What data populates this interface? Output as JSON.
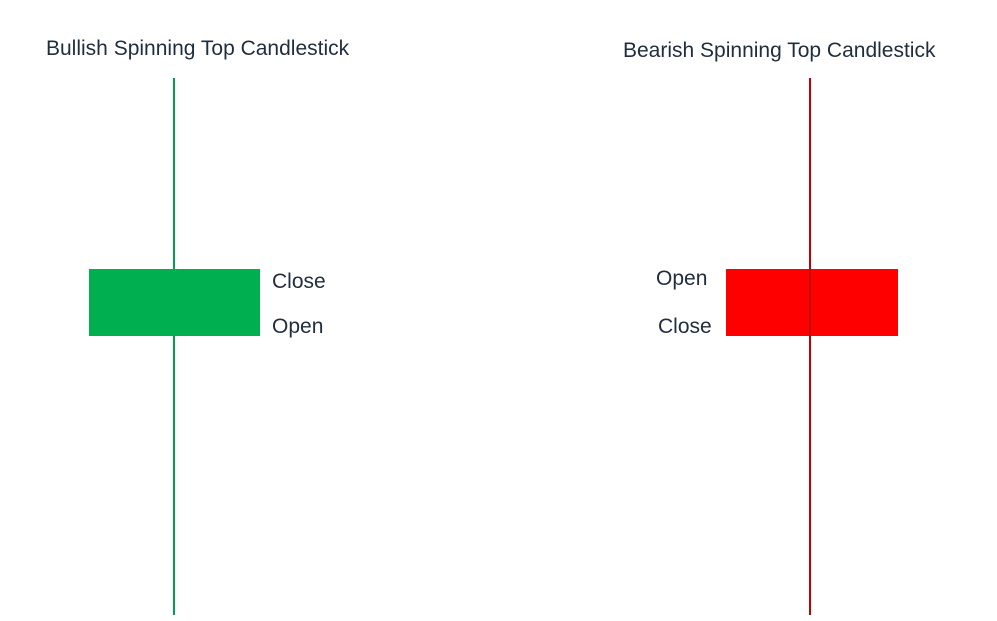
{
  "bullish": {
    "title": "Bullish Spinning Top Candlestick",
    "close_label": "Close",
    "open_label": "Open",
    "body_color": "#00b050",
    "wick_color": "#00a050"
  },
  "bearish": {
    "title": "Bearish Spinning Top Candlestick",
    "open_label": "Open",
    "close_label": "Close",
    "body_color": "#ff0000",
    "wick_color": "#c00000"
  }
}
